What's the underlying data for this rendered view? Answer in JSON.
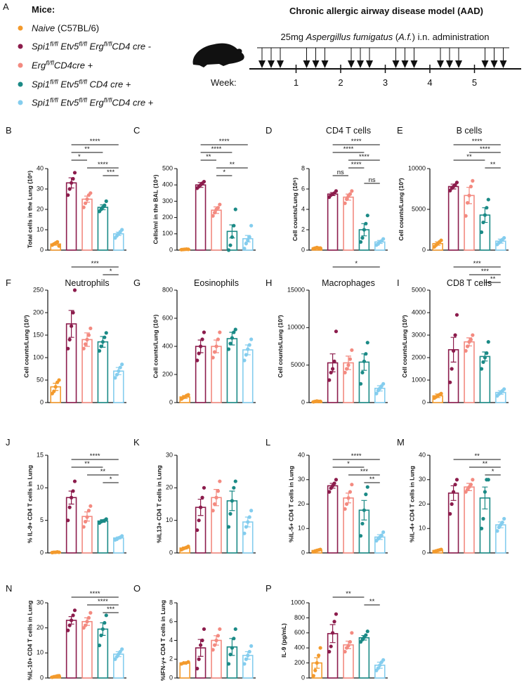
{
  "panel_a": {
    "label": "A",
    "header": "Mice:",
    "groups": [
      {
        "color": "#f39a2c",
        "label": [
          [
            "Naive",
            "i"
          ],
          [
            " (C57BL/6)",
            ""
          ]
        ]
      },
      {
        "color": "#8c1c4c",
        "label": [
          [
            "Spi1",
            "i"
          ],
          [
            "fl/fl",
            "s"
          ],
          [
            " Etv5",
            "i"
          ],
          [
            "fl/fl",
            "s"
          ],
          [
            " Erg",
            "i"
          ],
          [
            "fl/fl",
            "s"
          ],
          [
            "CD4 cre -",
            "i"
          ]
        ]
      },
      {
        "color": "#f38a80",
        "label": [
          [
            "Erg",
            "i"
          ],
          [
            "fl/fl",
            "s"
          ],
          [
            "CD4cre +",
            "i"
          ]
        ]
      },
      {
        "color": "#1b8a86",
        "label": [
          [
            "Spi1",
            "i"
          ],
          [
            "fl/fl",
            "s"
          ],
          [
            " Etv5",
            "i"
          ],
          [
            "fl/fl",
            "s"
          ],
          [
            " CD4 cre +",
            "i"
          ]
        ]
      },
      {
        "color": "#84cdee",
        "label": [
          [
            "Spi1",
            "i"
          ],
          [
            "fl/fl",
            "s"
          ],
          [
            " Etv5",
            "i"
          ],
          [
            "fl/fl",
            "s"
          ],
          [
            " Erg",
            "i"
          ],
          [
            "fl/fl",
            "s"
          ],
          [
            "CD4 cre +",
            "i"
          ]
        ]
      }
    ],
    "model_title": "Chronic allergic airway disease model (AAD)",
    "treatment": [
      [
        "25mg ",
        ""
      ],
      [
        "Aspergillus fumigatus",
        "i"
      ],
      [
        " (",
        ""
      ],
      [
        "A.f.",
        "i"
      ],
      [
        ") i.n. administration",
        ""
      ]
    ],
    "week_label": "Week:",
    "weeks": [
      1,
      2,
      3,
      4,
      5
    ]
  },
  "chart_data": [
    {
      "type": "bar",
      "panel": "B",
      "ylabel": "Total cells in the Lung (10⁶)",
      "ylim": [
        0,
        40
      ],
      "yticks": [
        0,
        10,
        20,
        30,
        40
      ],
      "values": [
        3,
        33,
        25,
        21,
        8
      ],
      "errors": [
        0.6,
        2.5,
        1.5,
        1.2,
        0.8
      ],
      "points": [
        [
          2.5,
          3,
          3.5,
          4,
          2
        ],
        [
          27,
          30,
          33,
          35,
          38
        ],
        [
          21,
          23,
          25,
          27,
          28
        ],
        [
          19,
          20,
          21,
          22,
          24
        ],
        [
          6,
          7,
          8,
          9,
          10
        ]
      ],
      "significance": [
        [
          1,
          4,
          "****"
        ],
        [
          1,
          3,
          "**"
        ],
        [
          1,
          2,
          "*"
        ],
        [
          2,
          4,
          "****"
        ],
        [
          3,
          4,
          "***"
        ]
      ]
    },
    {
      "type": "bar",
      "panel": "C",
      "ylabel": "Cells/ml in the BAL (10⁴)",
      "ylim": [
        0,
        500
      ],
      "yticks": [
        0,
        100,
        200,
        300,
        400,
        500
      ],
      "values": [
        5,
        400,
        245,
        115,
        70
      ],
      "errors": [
        5,
        15,
        20,
        40,
        20
      ],
      "points": [
        [
          3,
          4,
          5,
          6,
          5
        ],
        [
          380,
          390,
          400,
          410,
          420
        ],
        [
          210,
          230,
          250,
          260,
          280
        ],
        [
          0,
          30,
          80,
          150,
          250
        ],
        [
          10,
          40,
          60,
          80,
          150
        ]
      ],
      "significance": [
        [
          1,
          4,
          "****"
        ],
        [
          1,
          3,
          "****"
        ],
        [
          1,
          2,
          "**"
        ],
        [
          2,
          4,
          "**"
        ],
        [
          2,
          3,
          "*"
        ]
      ]
    },
    {
      "type": "bar",
      "panel": "D",
      "title": "CD4 T cells",
      "ylabel": "Cell counts/Lung (10⁶)",
      "ylim": [
        0,
        8
      ],
      "yticks": [
        0,
        2,
        4,
        6,
        8
      ],
      "values": [
        0.2,
        5.5,
        5.2,
        2.0,
        0.8
      ],
      "errors": [
        0.05,
        0.15,
        0.3,
        0.6,
        0.15
      ],
      "points": [
        [
          0.15,
          0.2,
          0.25,
          0.2,
          0.2
        ],
        [
          5.2,
          5.4,
          5.5,
          5.6,
          5.8
        ],
        [
          4.6,
          5.0,
          5.3,
          5.5,
          5.8
        ],
        [
          0.8,
          1.2,
          2,
          2.6,
          3.4
        ],
        [
          0.5,
          0.6,
          0.8,
          0.9,
          1.1
        ]
      ],
      "significance": [
        [
          1,
          4,
          "****"
        ],
        [
          1,
          3,
          "****"
        ],
        [
          2,
          4,
          "****"
        ],
        [
          2,
          3,
          "****"
        ],
        [
          1,
          2,
          "ns"
        ],
        [
          3,
          4,
          "ns"
        ]
      ]
    },
    {
      "type": "bar",
      "panel": "E",
      "title": "B cells",
      "ylabel": "Cell counts/Lung (10³)",
      "ylim": [
        0,
        10000
      ],
      "yticks": [
        0,
        5000,
        10000
      ],
      "values": [
        800,
        7800,
        6700,
        4300,
        1100
      ],
      "errors": [
        200,
        300,
        1000,
        900,
        250
      ],
      "points": [
        [
          400,
          600,
          800,
          1000,
          1200
        ],
        [
          7300,
          7600,
          7800,
          8000,
          8300
        ],
        [
          4200,
          5800,
          6700,
          7800,
          8500
        ],
        [
          2200,
          3400,
          4300,
          5200,
          6200
        ],
        [
          700,
          900,
          1100,
          1300,
          1500
        ]
      ],
      "significance": [
        [
          1,
          4,
          "****"
        ],
        [
          2,
          4,
          "****"
        ],
        [
          1,
          3,
          "**"
        ],
        [
          3,
          4,
          "**"
        ]
      ]
    },
    {
      "type": "bar",
      "panel": "F",
      "title": "Neutrophils",
      "ylabel": "Cell counts/Lung (10³)",
      "ylim": [
        0,
        250
      ],
      "yticks": [
        0,
        50,
        100,
        150,
        200,
        250
      ],
      "values": [
        35,
        175,
        140,
        135,
        70
      ],
      "errors": [
        8,
        30,
        15,
        12,
        8
      ],
      "points": [
        [
          20,
          25,
          35,
          45,
          50
        ],
        [
          120,
          140,
          170,
          200,
          250
        ],
        [
          120,
          130,
          140,
          150,
          165
        ],
        [
          115,
          125,
          135,
          145,
          155
        ],
        [
          55,
          62,
          70,
          78,
          85
        ]
      ],
      "significance": [
        [
          1,
          4,
          "***"
        ],
        [
          3,
          4,
          "*"
        ]
      ]
    },
    {
      "type": "bar",
      "panel": "G",
      "title": "Eosinophils",
      "ylabel": "Cell counts/Lung (10⁴)",
      "ylim": [
        0,
        800
      ],
      "yticks": [
        0,
        200,
        400,
        600,
        800
      ],
      "values": [
        40,
        400,
        400,
        455,
        375
      ],
      "errors": [
        10,
        45,
        45,
        45,
        35
      ],
      "points": [
        [
          25,
          35,
          40,
          50,
          55
        ],
        [
          300,
          350,
          400,
          450,
          500
        ],
        [
          320,
          360,
          400,
          450,
          500
        ],
        [
          380,
          420,
          460,
          500,
          520
        ],
        [
          300,
          340,
          380,
          410,
          450
        ]
      ],
      "significance": []
    },
    {
      "type": "bar",
      "panel": "H",
      "title": "Macrophages",
      "ylabel": "Cell counts/Lung (10³)",
      "ylim": [
        0,
        15000
      ],
      "yticks": [
        0,
        5000,
        10000,
        15000
      ],
      "values": [
        150,
        5300,
        5300,
        5400,
        1900
      ],
      "errors": [
        60,
        1200,
        900,
        1100,
        350
      ],
      "points": [
        [
          100,
          150,
          200,
          150,
          150
        ],
        [
          3000,
          4000,
          4500,
          5500,
          9500
        ],
        [
          4000,
          4500,
          5000,
          5800,
          7000
        ],
        [
          2500,
          4000,
          5500,
          6500,
          8000
        ],
        [
          1200,
          1600,
          1900,
          2200,
          2500
        ]
      ],
      "significance": [
        [
          1,
          4,
          "*"
        ]
      ]
    },
    {
      "type": "bar",
      "panel": "I",
      "title": "CD8 T cells",
      "ylabel": "Cell counts/Lung (10³)",
      "ylim": [
        0,
        5000
      ],
      "yticks": [
        0,
        1000,
        2000,
        3000,
        4000,
        5000
      ],
      "values": [
        300,
        2350,
        2700,
        2050,
        450
      ],
      "errors": [
        80,
        550,
        180,
        200,
        80
      ],
      "points": [
        [
          200,
          250,
          300,
          350,
          400
        ],
        [
          900,
          1500,
          2300,
          3000,
          3900
        ],
        [
          2300,
          2500,
          2700,
          2800,
          3000
        ],
        [
          1500,
          1800,
          2000,
          2200,
          2700
        ],
        [
          300,
          380,
          450,
          520,
          600
        ]
      ],
      "significance": [
        [
          1,
          4,
          "***"
        ],
        [
          2,
          4,
          "***"
        ],
        [
          3,
          4,
          "**"
        ]
      ]
    },
    {
      "type": "bar",
      "panel": "J",
      "ylabel": "% IL-9+ CD4 T cells in Lung",
      "ylim": [
        0,
        15
      ],
      "yticks": [
        0,
        5,
        10,
        15
      ],
      "values": [
        0.1,
        8.5,
        5.6,
        4.9,
        2.3
      ],
      "errors": [
        0.05,
        1.0,
        0.7,
        0.2,
        0.15
      ],
      "points": [
        [
          0.05,
          0.1,
          0.1,
          0.15,
          0.1
        ],
        [
          5,
          7,
          8.5,
          9.5,
          11
        ],
        [
          4,
          4.8,
          5.5,
          6.5,
          7.2
        ],
        [
          4.6,
          4.8,
          4.9,
          5,
          5.2
        ],
        [
          2,
          2.1,
          2.3,
          2.4,
          2.6
        ]
      ],
      "significance": [
        [
          1,
          4,
          "****"
        ],
        [
          1,
          3,
          "**"
        ],
        [
          2,
          4,
          "**"
        ],
        [
          3,
          4,
          "*"
        ]
      ]
    },
    {
      "type": "bar",
      "panel": "K",
      "ylabel": "%IL13+ CD4 T cells in Lung",
      "ylim": [
        0,
        30
      ],
      "yticks": [
        0,
        10,
        20,
        30
      ],
      "values": [
        1.5,
        14,
        17,
        16,
        9.5
      ],
      "errors": [
        0.3,
        2.5,
        2.5,
        3,
        1.5
      ],
      "points": [
        [
          1,
          1.3,
          1.5,
          1.7,
          2
        ],
        [
          7,
          10,
          14,
          17,
          20
        ],
        [
          13,
          15,
          17,
          19,
          22
        ],
        [
          8,
          12,
          16,
          20,
          22
        ],
        [
          6,
          8,
          9.5,
          11,
          13
        ]
      ],
      "significance": []
    },
    {
      "type": "bar",
      "panel": "L",
      "ylabel": "%IL-5+ CD4 T cells in Lung",
      "ylim": [
        0,
        40
      ],
      "yticks": [
        0,
        10,
        20,
        30,
        40
      ],
      "values": [
        1,
        27.5,
        22.5,
        17.5,
        6.5
      ],
      "errors": [
        0.2,
        1,
        2,
        4,
        1
      ],
      "points": [
        [
          0.5,
          0.8,
          1,
          1.2,
          1.4
        ],
        [
          25,
          26.5,
          27.5,
          28.5,
          30
        ],
        [
          18,
          20,
          22.5,
          25,
          28
        ],
        [
          7,
          12,
          17.5,
          24,
          27
        ],
        [
          5,
          5.8,
          6.5,
          7.2,
          8.5
        ]
      ],
      "significance": [
        [
          1,
          4,
          "****"
        ],
        [
          1,
          3,
          "*"
        ],
        [
          2,
          4,
          "***"
        ],
        [
          3,
          4,
          "**"
        ]
      ]
    },
    {
      "type": "bar",
      "panel": "M",
      "ylabel": "%IL-4+ CD4 T cells in Lung",
      "ylim": [
        0,
        40
      ],
      "yticks": [
        0,
        10,
        20,
        30,
        40
      ],
      "values": [
        1,
        24.5,
        27,
        22.5,
        11.5
      ],
      "errors": [
        0.2,
        3,
        1.5,
        4.5,
        1.2
      ],
      "points": [
        [
          0.6,
          0.8,
          1,
          1.2,
          1.4
        ],
        [
          16,
          20,
          25,
          28,
          30
        ],
        [
          25,
          26,
          27,
          28,
          30
        ],
        [
          10,
          14,
          25,
          30,
          30
        ],
        [
          9,
          10.5,
          11.5,
          12.5,
          14
        ]
      ],
      "significance": [
        [
          1,
          4,
          "**"
        ],
        [
          2,
          4,
          "**"
        ],
        [
          3,
          4,
          "*"
        ]
      ]
    },
    {
      "type": "bar",
      "panel": "N",
      "ylabel": "%IL-10+ CD4 T cells in Lung",
      "ylim": [
        0,
        30
      ],
      "yticks": [
        0,
        10,
        20,
        30
      ],
      "values": [
        0.6,
        23,
        22.5,
        19.5,
        9.5
      ],
      "errors": [
        0.2,
        1.5,
        1.5,
        2.5,
        1
      ],
      "points": [
        [
          0.3,
          0.5,
          0.6,
          0.8,
          0.9
        ],
        [
          19,
          21,
          23,
          25,
          27
        ],
        [
          20,
          21,
          22.5,
          24,
          26
        ],
        [
          13,
          17,
          19.5,
          22,
          25
        ],
        [
          7.5,
          8.5,
          9.5,
          10.5,
          11.5
        ]
      ],
      "significance": [
        [
          1,
          4,
          "****"
        ],
        [
          2,
          4,
          "****"
        ],
        [
          3,
          4,
          "***"
        ]
      ]
    },
    {
      "type": "bar",
      "panel": "O",
      "ylabel": "%IFN-γ+ CD4 T cells in Lung",
      "ylim": [
        0,
        8
      ],
      "yticks": [
        0,
        2,
        4,
        6,
        8
      ],
      "values": [
        1.6,
        3.2,
        4,
        3.3,
        2.4
      ],
      "errors": [
        0.05,
        0.9,
        0.5,
        0.9,
        0.4
      ],
      "points": [
        [
          1.5,
          1.6,
          1.6,
          1.7
        ],
        [
          1,
          2,
          3.5,
          4,
          5.2
        ],
        [
          3,
          3.5,
          4,
          4.5,
          5.2
        ],
        [
          1.5,
          2.5,
          3.2,
          4.2,
          5.2
        ],
        [
          1.5,
          2,
          2.4,
          2.8,
          3.4
        ]
      ],
      "significance": []
    },
    {
      "type": "bar",
      "panel": "P",
      "ylabel": "IL-9 (pg/mL)",
      "ylim": [
        0,
        1000
      ],
      "yticks": [
        0,
        200,
        400,
        600,
        800,
        1000
      ],
      "values": [
        200,
        590,
        440,
        535,
        170
      ],
      "errors": [
        70,
        120,
        50,
        30,
        40
      ],
      "points": [
        [
          30,
          100,
          200,
          300,
          400
        ],
        [
          350,
          420,
          600,
          750,
          850
        ],
        [
          350,
          400,
          430,
          480,
          600
        ],
        [
          480,
          510,
          540,
          570,
          620
        ],
        [
          100,
          130,
          170,
          210,
          240
        ]
      ],
      "significance": [
        [
          1,
          3,
          "**"
        ],
        [
          3,
          4,
          "**"
        ]
      ]
    }
  ]
}
